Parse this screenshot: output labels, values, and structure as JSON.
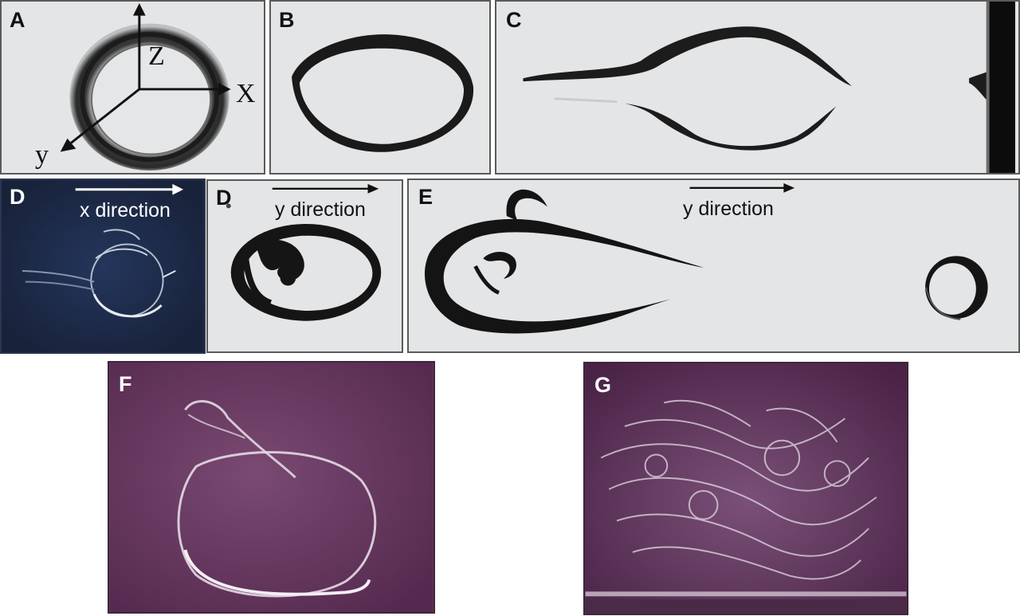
{
  "figure": {
    "panels": [
      {
        "id": "A",
        "label": "A",
        "axes": {
          "z": "Z",
          "x": "X",
          "y": "y"
        }
      },
      {
        "id": "B",
        "label": "B"
      },
      {
        "id": "C",
        "label": "C"
      },
      {
        "id": "D1",
        "label": "D",
        "direction": "x direction"
      },
      {
        "id": "D2",
        "label": "D",
        "direction": "y direction"
      },
      {
        "id": "E",
        "label": "E",
        "direction": "y direction"
      },
      {
        "id": "F",
        "label": "F"
      },
      {
        "id": "G",
        "label": "G"
      }
    ]
  },
  "colors": {
    "gray_bg": "#e3e5e6",
    "dark_blue_bg": "#1e2c4a",
    "purple_bg": "#6a3a63",
    "ink": "#161616"
  }
}
